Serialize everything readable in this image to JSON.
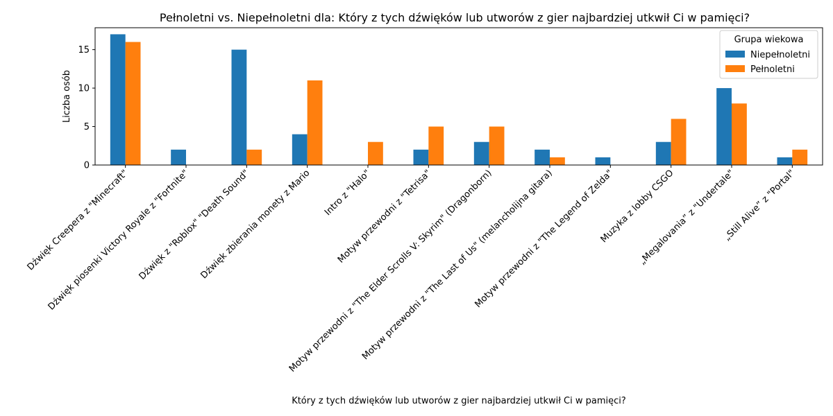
{
  "chart_data": {
    "type": "bar",
    "title": "Pełnoletni vs. Niepełnoletni dla: Który z tych dźwięków lub utworów z gier najbardziej utkwił Ci w pamięci?",
    "xlabel": "Który z tych dźwięków lub utworów z gier najbardziej utkwił Ci w pamięci?",
    "ylabel": "Liczba osób",
    "ylim": [
      0,
      17.85
    ],
    "yticks": [
      0,
      5,
      10,
      15
    ],
    "grid": false,
    "legend": {
      "title": "Grupa wiekowa",
      "placement": "top-right"
    },
    "categories": [
      "Dźwięk Creepera z \"Minecraft\"",
      "Dźwięk piosenki Victory Royale z \"Fortnite\"",
      "Dźwięk z \"Roblox\" \"Death Sound\"",
      "Dźwięk zbierania monety z Mario",
      "Intro z \"Halo\"",
      "Motyw przewodni z \"Tetrisa\"",
      "Motyw przewodni z \"The Elder Scrolls V: Skyrim\" (Dragonborn)",
      "Motyw przewodni z \"The Last of Us\" (melancholijna gitara)",
      "Motyw przewodni z \"The Legend of Zelda\"",
      "Muzyka z lobby CSGO",
      "„Megalovania” z \"Undertale\"",
      "„Still Alive” z \"Portal\""
    ],
    "series": [
      {
        "name": "Niepełnoletni",
        "color": "#1f77b4",
        "values": [
          17,
          2,
          15,
          4,
          0,
          2,
          3,
          2,
          1,
          3,
          10,
          1
        ]
      },
      {
        "name": "Pełnoletni",
        "color": "#ff7f0e",
        "values": [
          16,
          0,
          2,
          11,
          3,
          5,
          5,
          1,
          0,
          6,
          8,
          2
        ]
      }
    ]
  }
}
